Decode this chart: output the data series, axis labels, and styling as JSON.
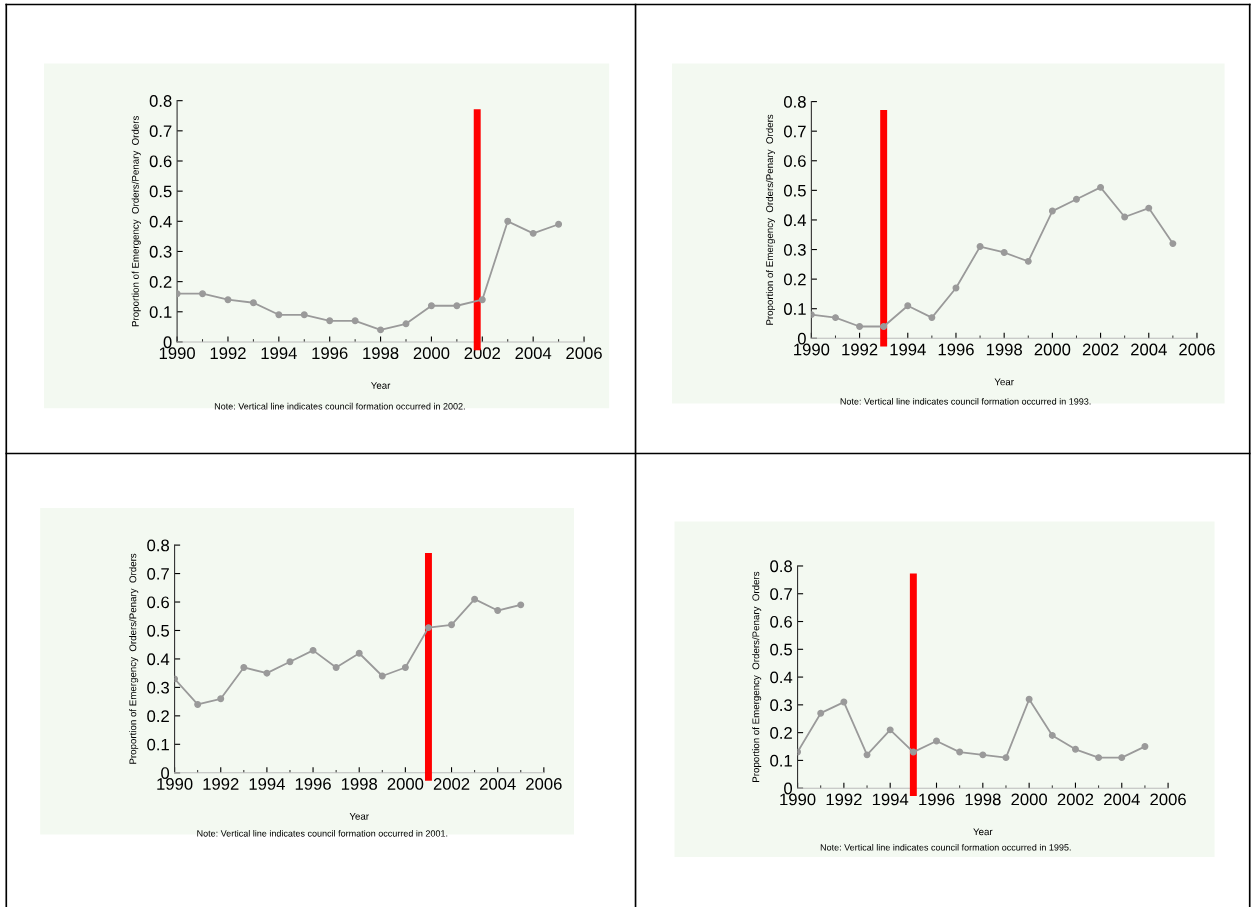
{
  "chart_data": [
    {
      "type": "line",
      "xlabel": "Year",
      "ylabel": "Proportion of Emergency  Orders/Penary  Orders",
      "x": [
        1990,
        1991,
        1992,
        1993,
        1994,
        1995,
        1996,
        1997,
        1998,
        1999,
        2000,
        2001,
        2002,
        2003,
        2004,
        2005
      ],
      "series": [
        {
          "color": "#9a9a9a",
          "values": [
            0.16,
            0.16,
            0.14,
            0.13,
            0.09,
            0.09,
            0.07,
            0.07,
            0.04,
            0.06,
            0.12,
            0.12,
            0.14,
            0.4,
            0.36,
            0.39
          ]
        }
      ],
      "xlim": [
        1990,
        2006
      ],
      "xticks": [
        1990,
        1992,
        1994,
        1996,
        1998,
        2000,
        2002,
        2004,
        2006
      ],
      "ylim": [
        0,
        0.8
      ],
      "yticks": [
        0,
        0.1,
        0.2,
        0.3,
        0.4,
        0.5,
        0.6,
        0.7,
        0.8
      ],
      "ref_lines": [
        {
          "axis": "x",
          "value": 2001.8,
          "color": "#ff0000"
        }
      ],
      "marker": "circle",
      "grid": false,
      "legend": false,
      "annotations": [
        "Note: Vertical line indicates council formation occurred in 2002."
      ]
    },
    {
      "type": "line",
      "xlabel": "Year",
      "ylabel": "Proportion of Emergency  Orders/Penary  Orders",
      "x": [
        1990,
        1991,
        1992,
        1993,
        1994,
        1995,
        1996,
        1997,
        1998,
        1999,
        2000,
        2001,
        2002,
        2003,
        2004,
        2005
      ],
      "series": [
        {
          "color": "#9a9a9a",
          "values": [
            0.08,
            0.07,
            0.04,
            0.04,
            0.11,
            0.07,
            0.17,
            0.31,
            0.29,
            0.26,
            0.43,
            0.47,
            0.51,
            0.41,
            0.44,
            0.32
          ]
        }
      ],
      "xlim": [
        1990,
        2006
      ],
      "xticks": [
        1990,
        1992,
        1994,
        1996,
        1998,
        2000,
        2002,
        2004,
        2006
      ],
      "ylim": [
        0,
        0.8
      ],
      "yticks": [
        0,
        0.1,
        0.2,
        0.3,
        0.4,
        0.5,
        0.6,
        0.7,
        0.8
      ],
      "ref_lines": [
        {
          "axis": "x",
          "value": 1993,
          "color": "#ff0000"
        }
      ],
      "marker": "circle",
      "grid": false,
      "legend": false,
      "annotations": [
        "Note: Vertical line indicates council formation occurred in 1993."
      ]
    },
    {
      "type": "line",
      "xlabel": "Year",
      "ylabel": "Proportion of Emergency  Orders/Penary  Orders",
      "x": [
        1990,
        1991,
        1992,
        1993,
        1994,
        1995,
        1996,
        1997,
        1998,
        1999,
        2000,
        2001,
        2002,
        2003,
        2004,
        2005
      ],
      "series": [
        {
          "color": "#9a9a9a",
          "values": [
            0.33,
            0.24,
            0.26,
            0.37,
            0.35,
            0.39,
            0.43,
            0.37,
            0.42,
            0.34,
            0.37,
            0.51,
            0.52,
            0.61,
            0.57,
            0.59
          ]
        }
      ],
      "xlim": [
        1990,
        2006
      ],
      "xticks": [
        1990,
        1992,
        1994,
        1996,
        1998,
        2000,
        2002,
        2004,
        2006
      ],
      "ylim": [
        0,
        0.8
      ],
      "yticks": [
        0,
        0.1,
        0.2,
        0.3,
        0.4,
        0.5,
        0.6,
        0.7,
        0.8
      ],
      "ref_lines": [
        {
          "axis": "x",
          "value": 2001,
          "color": "#ff0000"
        }
      ],
      "marker": "circle",
      "grid": false,
      "legend": false,
      "annotations": [
        "Note: Vertical line indicates council formation occurred in 2001."
      ]
    },
    {
      "type": "line",
      "xlabel": "Year",
      "ylabel": "Proportion of Emergency  Orders/Penary  Orders",
      "x": [
        1990,
        1991,
        1992,
        1993,
        1994,
        1995,
        1996,
        1997,
        1998,
        1999,
        2000,
        2001,
        2002,
        2003,
        2004,
        2005
      ],
      "series": [
        {
          "color": "#9a9a9a",
          "values": [
            0.13,
            0.27,
            0.31,
            0.12,
            0.21,
            0.13,
            0.17,
            0.13,
            0.12,
            0.11,
            0.32,
            0.19,
            0.14,
            0.11,
            0.11,
            0.15
          ]
        }
      ],
      "xlim": [
        1990,
        2006
      ],
      "xticks": [
        1990,
        1992,
        1994,
        1996,
        1998,
        2000,
        2002,
        2004,
        2006
      ],
      "ylim": [
        0,
        0.8
      ],
      "yticks": [
        0,
        0.1,
        0.2,
        0.3,
        0.4,
        0.5,
        0.6,
        0.7,
        0.8
      ],
      "ref_lines": [
        {
          "axis": "x",
          "value": 1995,
          "color": "#ff0000"
        }
      ],
      "marker": "circle",
      "grid": false,
      "legend": false,
      "annotations": [
        "Note: Vertical line indicates council formation occurred in 1995."
      ]
    }
  ]
}
